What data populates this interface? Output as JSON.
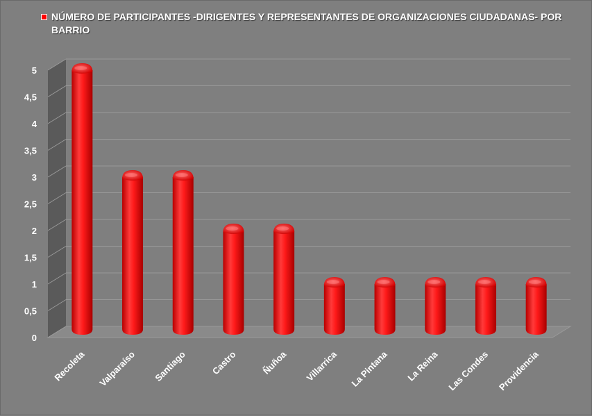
{
  "chart_data": {
    "type": "bar",
    "title": "",
    "legend_placement": "top-left",
    "categories": [
      "Recoleta",
      "Valparaíso",
      "Santiago",
      "Castro",
      "Ñuñoa",
      "Villarrica",
      "La Pintana",
      "La Reina",
      "Las Condes",
      "Providencia"
    ],
    "series": [
      {
        "name": "NÚMERO DE PARTICIPANTES -DIRIGENTES Y  REPRESENTANTES DE ORGANIZACIONES CIUDADANAS- POR BARRIO",
        "values": [
          5,
          3,
          3,
          2,
          2,
          1,
          1,
          1,
          1,
          1
        ]
      }
    ],
    "y_ticks": [
      "0",
      "0,5",
      "1",
      "1,5",
      "2",
      "2,5",
      "3",
      "3,5",
      "4",
      "4,5",
      "5"
    ],
    "ylim": [
      0,
      5
    ],
    "xlabel": "",
    "ylabel": "",
    "grid": true,
    "colors": {
      "bar": "#ff0000",
      "bar_dark": "#b80000",
      "bar_light": "#ff7a7a",
      "background": "#7f7f7f",
      "gridline": "#9a9a9a",
      "side_wall": "#5a5a5a"
    }
  }
}
